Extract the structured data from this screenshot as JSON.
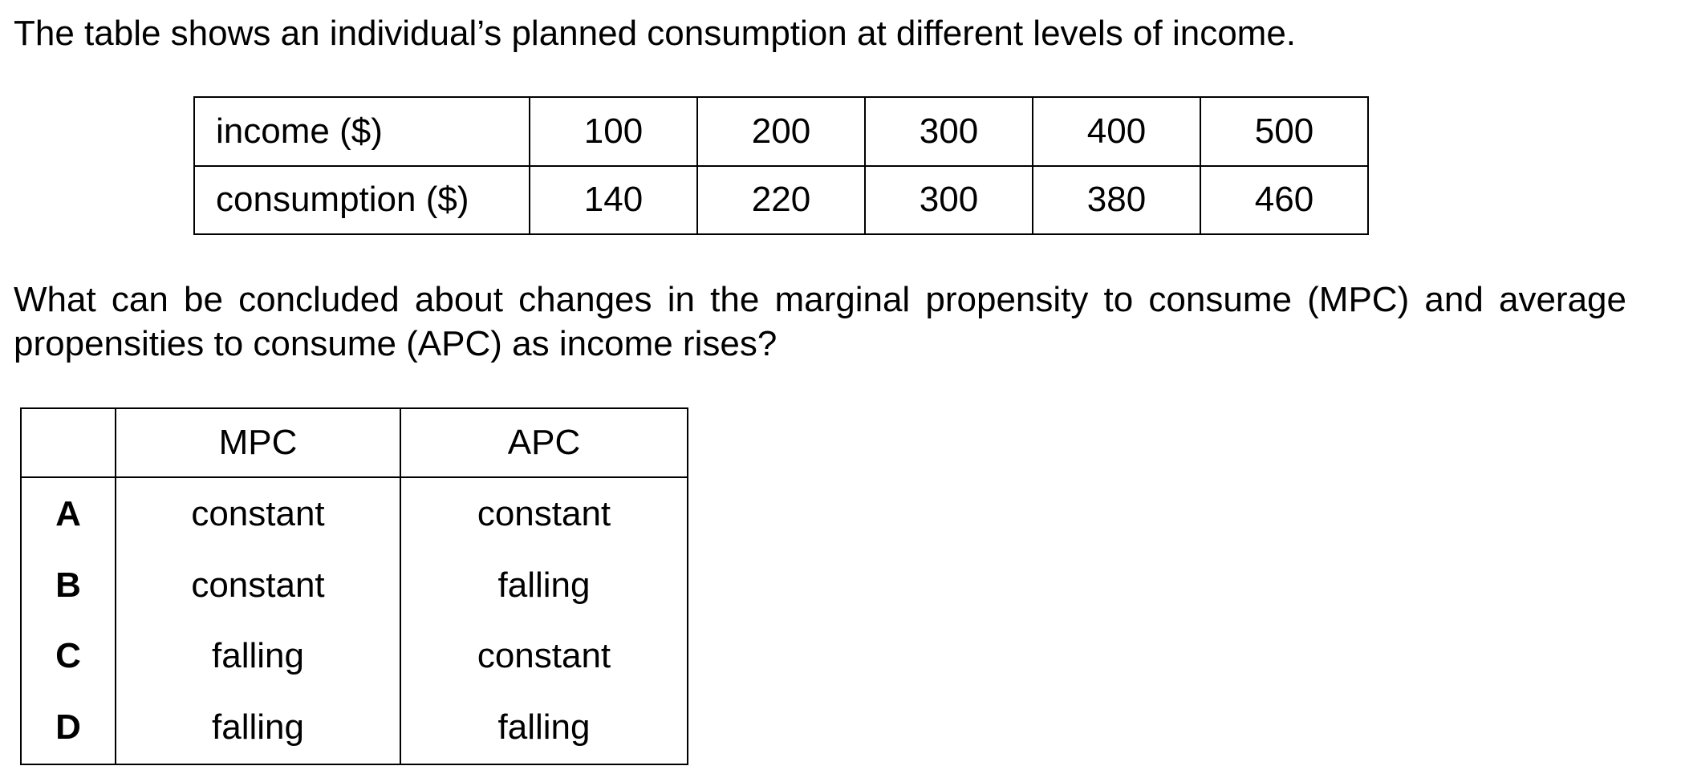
{
  "intro_text": "The table shows an individual’s planned consumption at different levels of income.",
  "income_table": {
    "rows": [
      {
        "label": "income ($)",
        "values": [
          "100",
          "200",
          "300",
          "400",
          "500"
        ]
      },
      {
        "label": "consumption ($)",
        "values": [
          "140",
          "220",
          "300",
          "380",
          "460"
        ]
      }
    ]
  },
  "question_text": "What can be concluded about changes in the marginal propensity to consume (MPC) and average propensities to consume (APC) as income rises?",
  "options_table": {
    "headers": [
      "",
      "MPC",
      "APC"
    ],
    "options": [
      {
        "letter": "A",
        "mpc": "constant",
        "apc": "constant"
      },
      {
        "letter": "B",
        "mpc": "constant",
        "apc": "falling"
      },
      {
        "letter": "C",
        "mpc": "falling",
        "apc": "constant"
      },
      {
        "letter": "D",
        "mpc": "falling",
        "apc": "falling"
      }
    ]
  }
}
